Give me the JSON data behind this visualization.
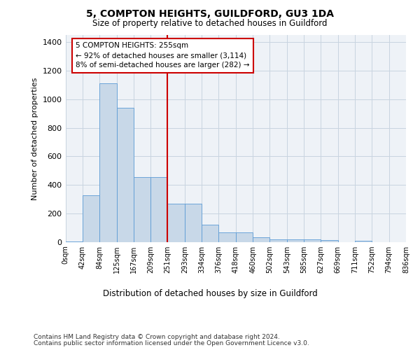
{
  "title": "5, COMPTON HEIGHTS, GUILDFORD, GU3 1DA",
  "subtitle": "Size of property relative to detached houses in Guildford",
  "xlabel": "Distribution of detached houses by size in Guildford",
  "ylabel": "Number of detached properties",
  "bar_heights": [
    5,
    325,
    1110,
    940,
    455,
    455,
    270,
    270,
    120,
    65,
    65,
    35,
    20,
    20,
    20,
    15,
    0,
    10,
    0,
    0
  ],
  "bar_labels": [
    "0sqm",
    "42sqm",
    "84sqm",
    "125sqm",
    "167sqm",
    "209sqm",
    "251sqm",
    "293sqm",
    "334sqm",
    "376sqm",
    "418sqm",
    "460sqm",
    "502sqm",
    "543sqm",
    "585sqm",
    "627sqm",
    "669sqm",
    "711sqm",
    "752sqm",
    "794sqm",
    "836sqm"
  ],
  "highlight_label": "5 COMPTON HEIGHTS: 255sqm",
  "highlight_line1": "← 92% of detached houses are smaller (3,114)",
  "highlight_line2": "8% of semi-detached houses are larger (282) →",
  "bar_color": "#c8d8e8",
  "bar_edge_color": "#5b9bd5",
  "highlight_line_color": "#cc0000",
  "annotation_box_color": "#cc0000",
  "grid_color": "#c8d4e0",
  "bg_color": "#eef2f7",
  "ylim": [
    0,
    1450
  ],
  "yticks": [
    0,
    200,
    400,
    600,
    800,
    1000,
    1200,
    1400
  ],
  "footer1": "Contains HM Land Registry data © Crown copyright and database right 2024.",
  "footer2": "Contains public sector information licensed under the Open Government Licence v3.0."
}
